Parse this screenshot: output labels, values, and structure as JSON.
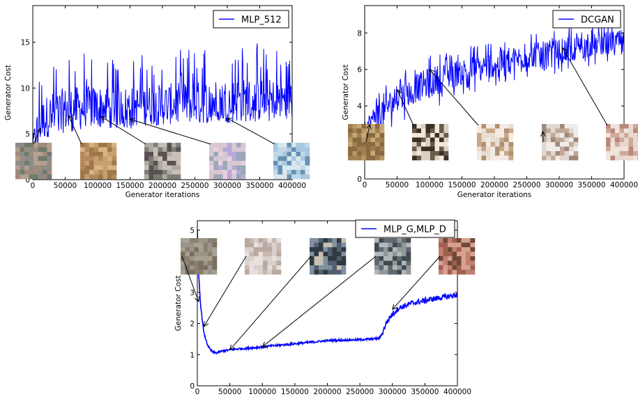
{
  "chart_data": [
    {
      "type": "line",
      "id": "mlp512",
      "title": "",
      "xlabel": "Generator iterations",
      "ylabel": "Generator Cost",
      "xlim": [
        0,
        400000
      ],
      "ylim": [
        0,
        19
      ],
      "x_ticks": [
        0,
        50000,
        100000,
        150000,
        200000,
        250000,
        300000,
        350000,
        400000
      ],
      "y_ticks": [
        0,
        5,
        10,
        15
      ],
      "legend_position": "top-right",
      "series": [
        {
          "name": "MLP_512",
          "color": "#0000ff",
          "noisy": true,
          "x": [
            0,
            5000,
            10000,
            20000,
            30000,
            50000,
            75000,
            100000,
            150000,
            200000,
            250000,
            300000,
            350000,
            400000
          ],
          "y": [
            3.5,
            5.2,
            6.0,
            6.8,
            7.2,
            7.6,
            7.8,
            7.9,
            8.0,
            8.2,
            8.4,
            8.6,
            8.7,
            8.8
          ],
          "y_low": [
            0,
            1.5,
            3.0,
            4.5,
            5.0,
            5.0,
            5.2,
            5.3,
            5.5,
            5.8,
            6.0,
            6.2,
            6.3,
            6.5
          ],
          "y_high": [
            4.5,
            8.0,
            11.0,
            13.0,
            13.5,
            14.0,
            14.0,
            13.8,
            13.5,
            14.0,
            14.5,
            15.0,
            15.0,
            14.0
          ]
        }
      ],
      "sample_images": [
        {
          "name": "sample-noise",
          "x": 12000,
          "y": 5.6
        },
        {
          "name": "sample-brown",
          "x": 55000,
          "y": 7.0
        },
        {
          "name": "sample-room",
          "x": 105000,
          "y": 6.9
        },
        {
          "name": "sample-pastel",
          "x": 150000,
          "y": 6.6
        },
        {
          "name": "sample-blue",
          "x": 300000,
          "y": 6.7
        }
      ]
    },
    {
      "type": "line",
      "id": "dcgan",
      "title": "",
      "xlabel": "Generator iterations",
      "ylabel": "Generator Cost",
      "xlim": [
        0,
        400000
      ],
      "ylim": [
        0,
        9.5
      ],
      "x_ticks": [
        0,
        50000,
        100000,
        150000,
        200000,
        250000,
        300000,
        350000,
        400000
      ],
      "y_ticks": [
        0,
        2,
        4,
        6,
        8
      ],
      "legend_position": "top-right",
      "series": [
        {
          "name": "DCGAN",
          "color": "#0000ff",
          "noisy": true,
          "x": [
            0,
            10000,
            25000,
            50000,
            75000,
            100000,
            150000,
            200000,
            250000,
            300000,
            350000,
            400000
          ],
          "y": [
            2.8,
            3.2,
            3.7,
            4.4,
            4.9,
            5.3,
            5.9,
            6.3,
            6.7,
            7.0,
            7.3,
            7.6
          ],
          "y_low": [
            2.2,
            2.2,
            2.5,
            3.0,
            3.5,
            3.8,
            4.5,
            5.0,
            5.5,
            5.8,
            6.2,
            6.5
          ],
          "y_high": [
            3.5,
            4.3,
            5.0,
            5.8,
            6.3,
            6.8,
            7.2,
            7.6,
            8.0,
            8.3,
            8.5,
            8.6
          ]
        }
      ],
      "sample_images": [
        {
          "name": "sample-blurry",
          "x": 8000,
          "y": 3.0
        },
        {
          "name": "sample-bed-dark",
          "x": 50000,
          "y": 4.9
        },
        {
          "name": "sample-bedroom-a",
          "x": 100000,
          "y": 6.0
        },
        {
          "name": "sample-bedroom-b",
          "x": 275000,
          "y": 2.6
        },
        {
          "name": "sample-bedroom-c",
          "x": 305000,
          "y": 7.2
        }
      ]
    },
    {
      "type": "line",
      "id": "mlpgd",
      "title": "",
      "xlabel": "",
      "ylabel": "Generator Cost",
      "xlim": [
        0,
        400000
      ],
      "ylim": [
        0,
        5.3
      ],
      "x_ticks": [
        0,
        50000,
        100000,
        150000,
        200000,
        250000,
        300000,
        350000,
        400000
      ],
      "y_ticks": [
        0,
        1,
        2,
        3,
        4,
        5
      ],
      "legend_position": "top-right",
      "series": [
        {
          "name": "MLP_G,MLP_D",
          "color": "#0000ff",
          "noisy": false,
          "x": [
            0,
            2000,
            5000,
            10000,
            15000,
            20000,
            25000,
            30000,
            40000,
            60000,
            80000,
            100000,
            150000,
            200000,
            250000,
            280000,
            285000,
            290000,
            300000,
            310000,
            330000,
            360000,
            400000
          ],
          "y": [
            5.0,
            3.6,
            2.6,
            1.7,
            1.35,
            1.15,
            1.07,
            1.06,
            1.12,
            1.18,
            1.21,
            1.25,
            1.35,
            1.45,
            1.48,
            1.52,
            1.7,
            2.0,
            2.3,
            2.5,
            2.65,
            2.78,
            2.92
          ]
        }
      ],
      "sample_images": [
        {
          "name": "sample-gray-noise",
          "x": 2000,
          "y": 2.7
        },
        {
          "name": "sample-pale",
          "x": 10000,
          "y": 1.9
        },
        {
          "name": "sample-dark-a",
          "x": 50000,
          "y": 1.15
        },
        {
          "name": "sample-dark-b",
          "x": 100000,
          "y": 1.25
        },
        {
          "name": "sample-colored",
          "x": 300000,
          "y": 2.45
        }
      ]
    }
  ]
}
